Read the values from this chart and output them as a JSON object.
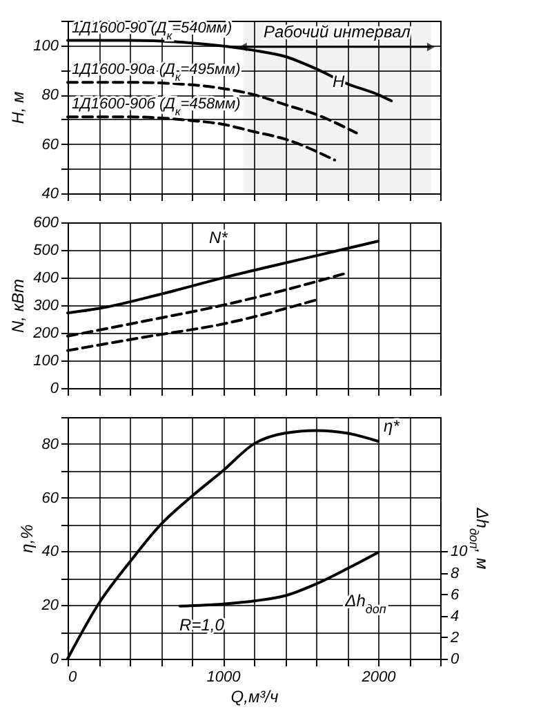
{
  "chart_data": [
    {
      "type": "line",
      "ylabel": "H, м",
      "xlim": [
        0,
        2400
      ],
      "ylim": [
        40,
        110
      ],
      "grid": true,
      "tick_labels": "y",
      "xticks": [
        0,
        {
          "value": 200,
          "label": null
        },
        {
          "value": 400,
          "label": null
        },
        {
          "value": 600,
          "label": null
        },
        {
          "value": 800,
          "label": null
        },
        1000,
        {
          "value": 1200,
          "label": null
        },
        {
          "value": 1400,
          "label": null
        },
        {
          "value": 1600,
          "label": null
        },
        {
          "value": 1800,
          "label": null
        },
        2000,
        {
          "value": 2200,
          "label": null
        },
        {
          "value": 2400,
          "label": null
        }
      ],
      "yticks": [
        40,
        {
          "value": 50,
          "label": null
        },
        60,
        {
          "value": 70,
          "label": null
        },
        80,
        {
          "value": 90,
          "label": null
        },
        100,
        {
          "value": 110,
          "label": null
        }
      ],
      "bands": [
        {
          "axis": "x",
          "from": 1130,
          "to": 2340,
          "label": "Рабочий интервал"
        }
      ],
      "annotations": [
        {
          "text": "H",
          "x": 1600,
          "y": 90.5
        }
      ],
      "series": [
        {
          "name": "1Д1600-90 (Д$_{к}$=540мм)",
          "color": "#000000",
          "line_style": "solid",
          "x": [
            0,
            400,
            800,
            1200,
            1400,
            1600,
            1800,
            2000,
            2085
          ],
          "values": [
            102,
            102,
            101,
            98,
            95.5,
            90.5,
            84.5,
            80,
            77.5
          ]
        },
        {
          "name": "1Д1600-90а (Д$_{к}$=495мм)",
          "color": "#000000",
          "line_style": "dashed",
          "x": [
            0,
            400,
            800,
            1000,
            1200,
            1400,
            1600,
            1860
          ],
          "values": [
            85,
            85,
            84,
            82.5,
            80,
            76,
            72,
            64.5
          ]
        },
        {
          "name": "1Д1600-90б (Д$_{к}$=458мм)",
          "color": "#000000",
          "line_style": "dashed",
          "x": [
            0,
            400,
            800,
            1000,
            1200,
            1400,
            1720
          ],
          "values": [
            71,
            71,
            69.5,
            68,
            65,
            62,
            53.5
          ]
        }
      ]
    },
    {
      "type": "line",
      "ylabel": "N, кВт",
      "xlim": [
        0,
        2400
      ],
      "ylim": [
        0,
        600
      ],
      "grid": true,
      "tick_labels": "y",
      "xticks": [
        0,
        {
          "value": 200,
          "label": null
        },
        {
          "value": 400,
          "label": null
        },
        {
          "value": 600,
          "label": null
        },
        {
          "value": 800,
          "label": null
        },
        1000,
        {
          "value": 1200,
          "label": null
        },
        {
          "value": 1400,
          "label": null
        },
        {
          "value": 1600,
          "label": null
        },
        {
          "value": 1800,
          "label": null
        },
        2000,
        {
          "value": 2200,
          "label": null
        },
        {
          "value": 2400,
          "label": null
        }
      ],
      "yticks": [
        0,
        100,
        200,
        300,
        400,
        500,
        600
      ],
      "annotations": [
        {
          "text": "N*",
          "x": 1000,
          "y": 399
        }
      ],
      "series": [
        {
          "color": "#000000",
          "line_style": "solid",
          "x": [
            0,
            200,
            600,
            1000,
            1600,
            2000
          ],
          "values": [
            272,
            288,
            340,
            399,
            479,
            532
          ]
        },
        {
          "color": "#000000",
          "line_style": "dashed",
          "x": [
            0,
            500,
            1000,
            1500,
            1800
          ],
          "values": [
            188,
            243,
            300,
            370,
            417
          ]
        },
        {
          "color": "#000000",
          "line_style": "dashed",
          "x": [
            0,
            500,
            1000,
            1600
          ],
          "values": [
            136,
            185,
            232,
            319
          ]
        }
      ]
    },
    {
      "type": "line",
      "ylabel": "η,%",
      "xlabel": "Q,м³/ч",
      "y2label": "Δh$_{доп}$, м",
      "xlim": [
        0,
        2400
      ],
      "ylim": [
        0,
        90
      ],
      "y2lim": [
        0,
        22.5
      ],
      "grid": true,
      "xticks": [
        0,
        {
          "value": 200,
          "label": null
        },
        {
          "value": 400,
          "label": null
        },
        {
          "value": 600,
          "label": null
        },
        {
          "value": 800,
          "label": null
        },
        1000,
        {
          "value": 1200,
          "label": null
        },
        {
          "value": 1400,
          "label": null
        },
        {
          "value": 1600,
          "label": null
        },
        {
          "value": 1800,
          "label": null
        },
        2000,
        {
          "value": 2200,
          "label": null
        },
        {
          "value": 2400,
          "label": null
        }
      ],
      "yticks": [
        0,
        {
          "value": 10,
          "label": null
        },
        20,
        {
          "value": 30,
          "label": null
        },
        40,
        {
          "value": 50,
          "label": null
        },
        60,
        {
          "value": 70,
          "label": null
        },
        80,
        {
          "value": 90,
          "label": null
        }
      ],
      "y2ticks": [
        0,
        2,
        4,
        6,
        8,
        10
      ],
      "annotations": [
        {
          "text": "η*",
          "x": 2000,
          "y": 81
        },
        "Δh$_{доп}$",
        "R=1,0"
      ],
      "series": [
        {
          "color": "#000000",
          "line_style": "solid",
          "x": [
            0,
            200,
            400,
            600,
            800,
            1000,
            1200,
            1400,
            1600,
            1800,
            2000
          ],
          "values": [
            0,
            20.5,
            36,
            50,
            60.5,
            70,
            80,
            84,
            85,
            84,
            81
          ]
        },
        {
          "color": "#000000",
          "line_style": "solid",
          "axis": "y2",
          "x": [
            724,
            1000,
            1211,
            1408,
            1606,
            1803,
            2000
          ],
          "values": [
            4.9,
            5.1,
            5.4,
            5.9,
            7,
            8.4,
            9.9
          ]
        }
      ]
    }
  ]
}
